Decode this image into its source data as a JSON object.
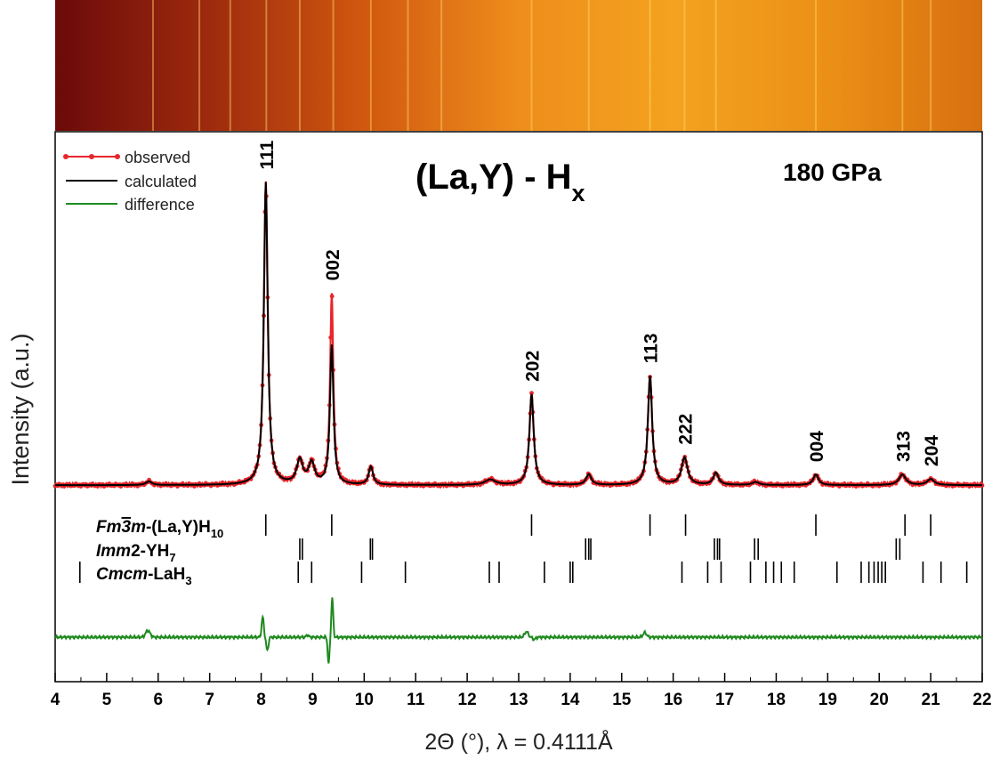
{
  "chart_data": {
    "type": "line",
    "title": "(La,Y) - H",
    "title_subscript": "x",
    "pressure_label": "180 GPa",
    "xlabel": "2Θ (°), λ = 0.4111Å",
    "ylabel": "Intensity (a.u.)",
    "xlim": [
      4,
      22
    ],
    "x_ticks": [
      4,
      5,
      6,
      7,
      8,
      9,
      10,
      11,
      12,
      13,
      14,
      15,
      16,
      17,
      18,
      19,
      20,
      21,
      22
    ],
    "legend_position": "top-left",
    "legend": [
      {
        "name": "observed",
        "color": "#e8262b"
      },
      {
        "name": "calculated",
        "color": "#000000"
      },
      {
        "name": "difference",
        "color": "#1f8a1f"
      }
    ],
    "background_level": 0.02,
    "peaks": [
      {
        "x": 5.82,
        "h": 0.012,
        "w": 0.07
      },
      {
        "x": 8.09,
        "h": 1.0,
        "w": 0.045
      },
      {
        "x": 8.75,
        "h": 0.08,
        "w": 0.07
      },
      {
        "x": 8.98,
        "h": 0.07,
        "w": 0.07
      },
      {
        "x": 9.37,
        "h": 0.46,
        "w": 0.04
      },
      {
        "x": 10.13,
        "h": 0.06,
        "w": 0.05
      },
      {
        "x": 12.45,
        "h": 0.018,
        "w": 0.12
      },
      {
        "x": 13.25,
        "h": 0.3,
        "w": 0.05
      },
      {
        "x": 14.36,
        "h": 0.035,
        "w": 0.06
      },
      {
        "x": 15.55,
        "h": 0.36,
        "w": 0.05
      },
      {
        "x": 16.22,
        "h": 0.09,
        "w": 0.07
      },
      {
        "x": 16.83,
        "h": 0.04,
        "w": 0.06
      },
      {
        "x": 17.6,
        "h": 0.01,
        "w": 0.08
      },
      {
        "x": 18.77,
        "h": 0.035,
        "w": 0.06
      },
      {
        "x": 20.45,
        "h": 0.035,
        "w": 0.08
      },
      {
        "x": 21.0,
        "h": 0.02,
        "w": 0.08
      }
    ],
    "observed_peak_boost": [
      {
        "x": 9.37,
        "h": 0.17,
        "w": 0.03
      }
    ],
    "peak_labels": [
      {
        "label": "111",
        "x": 8.09
      },
      {
        "label": "002",
        "x": 9.37
      },
      {
        "label": "202",
        "x": 13.25
      },
      {
        "label": "113",
        "x": 15.55
      },
      {
        "label": "222",
        "x": 16.22
      },
      {
        "label": "004",
        "x": 18.77
      },
      {
        "label": "313",
        "x": 20.45
      },
      {
        "label": "204",
        "x": 21.0
      }
    ],
    "phases": [
      {
        "prefix": "Fm",
        "bar": "3",
        "suffix": "m",
        "rest": "-(La,Y)H",
        "sub": "10",
        "ticks": [
          8.09,
          9.37,
          13.25,
          15.55,
          16.24,
          18.77,
          20.5,
          21.0
        ]
      },
      {
        "prefix": "Imm",
        "bar": "",
        "suffix": "",
        "rest": "2-YH",
        "sub": "7",
        "ticks": [
          8.75,
          8.8,
          10.12,
          10.16,
          14.3,
          14.36,
          14.4,
          16.8,
          16.86,
          16.9,
          17.58,
          17.65,
          20.33,
          20.4
        ]
      },
      {
        "prefix": "Cmcm",
        "bar": "",
        "suffix": "",
        "rest": "-LaH",
        "sub": "3",
        "ticks": [
          4.48,
          8.72,
          8.98,
          9.95,
          10.8,
          12.43,
          12.62,
          13.5,
          14.0,
          14.05,
          16.17,
          16.67,
          16.93,
          17.5,
          17.8,
          17.95,
          18.1,
          18.35,
          19.18,
          19.65,
          19.8,
          19.9,
          19.98,
          20.05,
          20.12,
          20.85,
          21.2,
          21.7
        ]
      }
    ],
    "difference": [
      {
        "x": 5.8,
        "amp": 0.03,
        "w": 0.06
      },
      {
        "x": 8.03,
        "amp": 0.09,
        "w": 0.03
      },
      {
        "x": 8.12,
        "amp": -0.06,
        "w": 0.03
      },
      {
        "x": 8.9,
        "amp": 0.01,
        "w": 0.03
      },
      {
        "x": 9.31,
        "amp": -0.12,
        "w": 0.025
      },
      {
        "x": 9.38,
        "amp": 0.18,
        "w": 0.025
      },
      {
        "x": 13.15,
        "amp": 0.025,
        "w": 0.05
      },
      {
        "x": 13.3,
        "amp": -0.01,
        "w": 0.04
      },
      {
        "x": 15.45,
        "amp": 0.02,
        "w": 0.05
      }
    ],
    "diffraction_image_gradient": [
      "#6b0a0a",
      "#9e2a0d",
      "#d0580f",
      "#ee8d1c",
      "#f4a21f",
      "#eb9016",
      "#d8700f"
    ],
    "diffraction_image_lines": [
      5.9,
      6.8,
      7.4,
      8.1,
      8.75,
      9.4,
      10.13,
      10.85,
      11.5,
      13.25,
      14.36,
      15.55,
      16.22,
      16.83,
      18.77,
      20.45,
      21.0
    ]
  }
}
